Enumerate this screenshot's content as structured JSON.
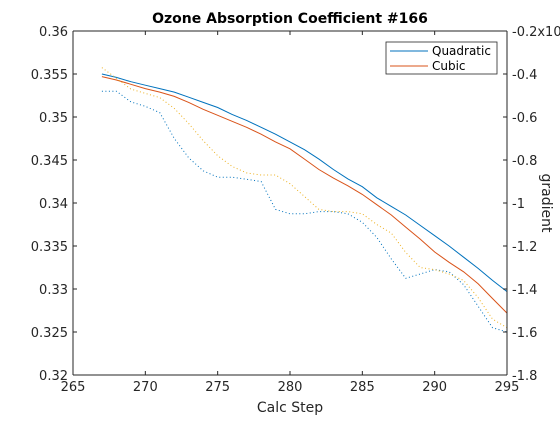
{
  "chart_data": {
    "type": "line",
    "title": "Ozone Absorption Coefficient  #166",
    "xlabel": "Calc Step",
    "ylabel": "",
    "y2label": "gradient",
    "xlim": [
      265,
      295
    ],
    "ylim": [
      0.32,
      0.36
    ],
    "y2lim": [
      -1.8,
      -0.2
    ],
    "x_ticks": [
      "265",
      "270",
      "275",
      "280",
      "285",
      "290",
      "295"
    ],
    "y_ticks": [
      "0.32",
      "0.325",
      "0.33",
      "0.335",
      "0.34",
      "0.345",
      "0.35",
      "0.355",
      "0.36"
    ],
    "y2_ticks": [
      "-1.8",
      "-1.6",
      "-1.4",
      "-1.2",
      "-1",
      "-0.8",
      "-0.6",
      "-0.4",
      "-0.2x10"
    ],
    "legend_position": "top-right",
    "grid": false,
    "colors": {
      "quadratic": "#0072BD",
      "cubic": "#D95319",
      "axis": "#262626"
    },
    "x": [
      267,
      268,
      269,
      270,
      271,
      272,
      273,
      274,
      275,
      276,
      277,
      278,
      279,
      280,
      281,
      282,
      283,
      284,
      285,
      286,
      287,
      288,
      289,
      290,
      291,
      292,
      293,
      294,
      295
    ],
    "series": [
      {
        "name": "Quadratic",
        "axis": "left",
        "style": "solid",
        "color": "#0072BD",
        "values": [
          0.355,
          0.3546,
          0.3541,
          0.3537,
          0.3533,
          0.3529,
          0.3523,
          0.3517,
          0.3511,
          0.3503,
          0.3496,
          0.3488,
          0.348,
          0.3471,
          0.3462,
          0.3451,
          0.3439,
          0.3428,
          0.3419,
          0.3406,
          0.3396,
          0.3386,
          0.3374,
          0.3362,
          0.335,
          0.3337,
          0.3324,
          0.331,
          0.3297
        ]
      },
      {
        "name": "Cubic",
        "axis": "left",
        "style": "solid",
        "color": "#D95319",
        "values": [
          0.3547,
          0.3543,
          0.3538,
          0.3533,
          0.3529,
          0.3524,
          0.3517,
          0.3509,
          0.3502,
          0.3495,
          0.3488,
          0.348,
          0.3471,
          0.3463,
          0.3451,
          0.3439,
          0.3429,
          0.342,
          0.341,
          0.3398,
          0.3386,
          0.3372,
          0.3358,
          0.3343,
          0.3331,
          0.332,
          0.3306,
          0.3289,
          0.3272
        ]
      },
      {
        "name": "Quadratic gradient",
        "axis": "right",
        "style": "dotted",
        "color": "#0072BD",
        "values": [
          -0.48,
          -0.48,
          -0.53,
          -0.55,
          -0.58,
          -0.7,
          -0.79,
          -0.85,
          -0.88,
          -0.88,
          -0.89,
          -0.9,
          -1.03,
          -1.05,
          -1.05,
          -1.04,
          -1.04,
          -1.05,
          -1.09,
          -1.16,
          -1.26,
          -1.35,
          -1.33,
          -1.31,
          -1.32,
          -1.38,
          -1.48,
          -1.58,
          -1.6
        ]
      },
      {
        "name": "Cubic gradient",
        "axis": "right",
        "style": "dotted",
        "color": "#EDB120",
        "values": [
          -0.37,
          -0.42,
          -0.47,
          -0.49,
          -0.51,
          -0.56,
          -0.63,
          -0.71,
          -0.78,
          -0.83,
          -0.86,
          -0.87,
          -0.87,
          -0.91,
          -0.97,
          -1.03,
          -1.04,
          -1.04,
          -1.05,
          -1.1,
          -1.14,
          -1.23,
          -1.3,
          -1.31,
          -1.33,
          -1.36,
          -1.44,
          -1.54,
          -1.58
        ]
      }
    ]
  }
}
